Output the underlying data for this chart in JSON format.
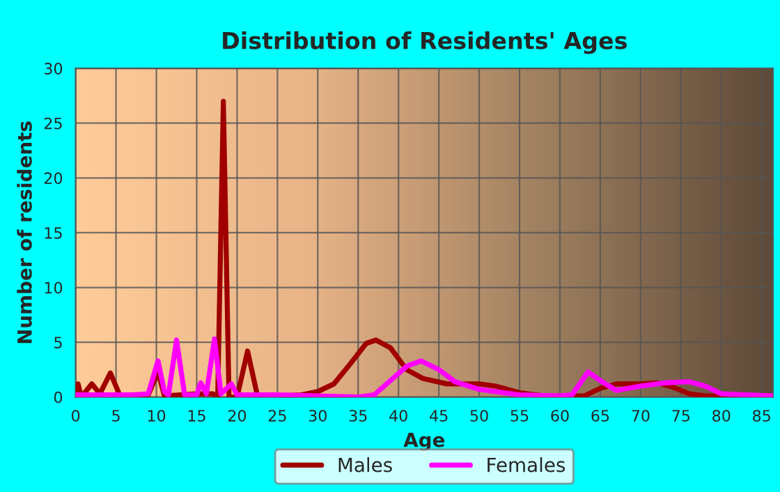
{
  "chart_data": {
    "type": "line",
    "title": "Distribution of Residents' Ages",
    "xlabel": "Age",
    "ylabel": "Number of residents",
    "xlim": [
      0,
      86.4
    ],
    "xticks": [
      0,
      5,
      10,
      15,
      20,
      25,
      30,
      35,
      40,
      45,
      50,
      55,
      60,
      65,
      70,
      75,
      80,
      85
    ],
    "ylim": [
      0,
      30
    ],
    "yticks": [
      0,
      5,
      10,
      15,
      20,
      25,
      30
    ],
    "grid": true,
    "legend": "bottom",
    "line_style": "solid",
    "series": [
      {
        "name": "Males",
        "color": "#a00000",
        "x": [
          0,
          0.3,
          0.7,
          2,
          3,
          4.3,
          5.5,
          7,
          9,
          10.2,
          11,
          13,
          15,
          17,
          17.6,
          18.3,
          19,
          20,
          21.3,
          22.5,
          25,
          28,
          30,
          32,
          34,
          36,
          37.2,
          39,
          41,
          43,
          46,
          50,
          52,
          55,
          58,
          61,
          63,
          65,
          67,
          70,
          72,
          74,
          76,
          78,
          80,
          86.4
        ],
        "values": [
          0,
          1.2,
          0,
          1.2,
          0.3,
          2.2,
          0.1,
          0.2,
          0.2,
          2.3,
          0.1,
          0.2,
          0.3,
          0.3,
          0,
          27,
          0,
          0,
          4.2,
          0.2,
          0.1,
          0.2,
          0.5,
          1.2,
          3,
          4.9,
          5.2,
          4.5,
          2.5,
          1.7,
          1.2,
          1.2,
          1,
          0.4,
          0.1,
          0.1,
          0.1,
          0.8,
          1.2,
          1.2,
          1.3,
          0.9,
          0.3,
          0.1,
          0.1,
          0.1
        ]
      },
      {
        "name": "Females",
        "color": "#ff00ff",
        "x": [
          0,
          7,
          9,
          10.2,
          11,
          11.5,
          12.5,
          13.5,
          15,
          15.5,
          16.2,
          17.2,
          18,
          19.3,
          20,
          25,
          30,
          35,
          37,
          39,
          41,
          42.8,
          45,
          47,
          50,
          55,
          60,
          61.5,
          63.5,
          65,
          67,
          70,
          73,
          76,
          78,
          80,
          86.4
        ],
        "values": [
          0.2,
          0.2,
          0.3,
          3.3,
          0.5,
          0.2,
          5.2,
          0.2,
          0.2,
          1.3,
          0.3,
          5.3,
          0.3,
          1.2,
          0.2,
          0.2,
          0.1,
          0,
          0.2,
          1.5,
          2.8,
          3.3,
          2.5,
          1.4,
          0.7,
          0.2,
          0.1,
          0.2,
          2.3,
          1.5,
          0.6,
          1,
          1.3,
          1.4,
          1,
          0.3,
          0.1
        ]
      }
    ]
  }
}
